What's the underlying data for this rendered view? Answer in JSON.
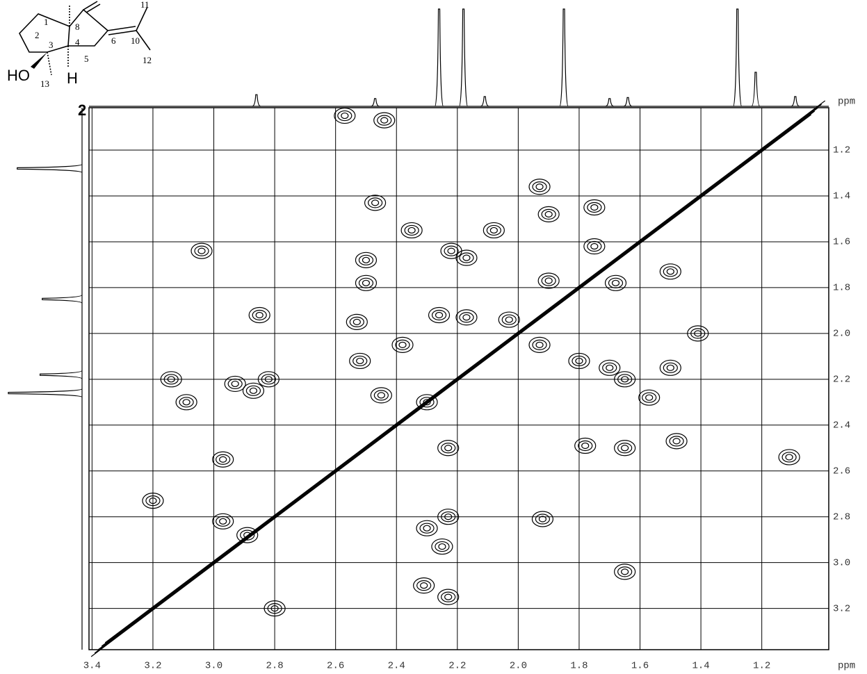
{
  "structure": {
    "compound": "2",
    "hydroxyl": "HO",
    "hydrogen": "H",
    "atoms": [
      "1",
      "2",
      "3",
      "4",
      "5",
      "6",
      "8",
      "10",
      "11",
      "12",
      "13"
    ]
  },
  "chart_data": {
    "type": "contour",
    "x_unit": "ppm",
    "y_unit": "ppm",
    "xlim": [
      3.41,
      0.98
    ],
    "ylim": [
      1.015,
      3.38
    ],
    "xticks": [
      3.4,
      3.2,
      {
        "value": 3,
        "label": "3.0"
      },
      2.8,
      2.6,
      2.4,
      2.2,
      {
        "value": 2,
        "label": "2.0"
      },
      1.8,
      1.6,
      1.4,
      1.2
    ],
    "yticks": [
      1.2,
      1.4,
      1.6,
      1.8,
      {
        "value": 2,
        "label": "2.0"
      },
      2.2,
      2.4,
      2.6,
      2.8,
      {
        "value": 3,
        "label": "3.0"
      },
      3.2
    ],
    "grid": true,
    "color": "#000000",
    "peaks": {
      "x": [
        2.57,
        2.44,
        1.93,
        2.47,
        2.08,
        2.35,
        1.9,
        1.75,
        3.04,
        2.5,
        2.5,
        2.22,
        2.17,
        1.68,
        1.5,
        1.9,
        1.75,
        2.85,
        2.53,
        2.26,
        2.17,
        2.03,
        1.93,
        1.41,
        2.52,
        2.38,
        1.8,
        1.7,
        1.5,
        3.14,
        2.93,
        2.87,
        2.82,
        3.09,
        1.65,
        1.57,
        2.45,
        2.3,
        2.23,
        1.78,
        1.65,
        1.48,
        1.11,
        2.97,
        3.2,
        1.92,
        2.23,
        2.3,
        2.25,
        2.97,
        2.89,
        1.65,
        2.31,
        2.23,
        2.8
      ],
      "values": [
        1.05,
        1.07,
        1.36,
        1.43,
        1.55,
        1.55,
        1.48,
        1.45,
        1.64,
        1.68,
        1.78,
        1.64,
        1.67,
        1.78,
        1.73,
        1.77,
        1.62,
        1.92,
        1.95,
        1.92,
        1.93,
        1.94,
        2.05,
        2.0,
        2.12,
        2.05,
        2.12,
        2.15,
        2.15,
        2.2,
        2.22,
        2.25,
        2.2,
        2.3,
        2.2,
        2.28,
        2.27,
        2.3,
        2.5,
        2.49,
        2.5,
        2.47,
        2.54,
        2.55,
        2.73,
        2.81,
        2.8,
        2.85,
        2.93,
        2.82,
        2.88,
        3.04,
        3.1,
        3.15,
        3.2
      ]
    },
    "top_projection": {
      "x": [
        2.86,
        2.47,
        2.26,
        2.18,
        2.11,
        1.85,
        1.7,
        1.64,
        1.28,
        1.22,
        1.09
      ],
      "values": [
        12,
        8,
        100,
        100,
        10,
        100,
        8,
        9,
        100,
        35,
        10
      ]
    },
    "side_projection": {
      "y": [
        1.28,
        1.85,
        2.18,
        2.26
      ],
      "values": [
        88,
        54,
        57,
        100
      ]
    }
  }
}
